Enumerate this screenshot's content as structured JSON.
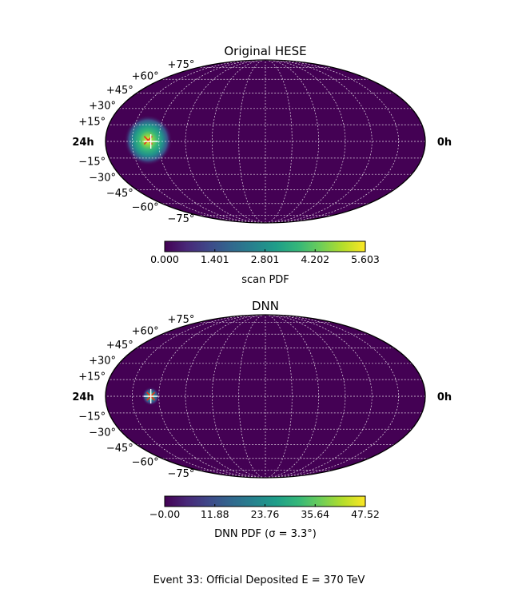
{
  "figure": {
    "footer": "Event 33:  Official Deposited  E = 370 TeV"
  },
  "chart_data": [
    {
      "type": "heatmap",
      "projection": "mollweide",
      "title": "Original HESE",
      "x_edge_labels": {
        "left": "24h",
        "right": "0h"
      },
      "lat_labels": [
        "+75°",
        "+60°",
        "+45°",
        "+30°",
        "+15°",
        "−15°",
        "−30°",
        "−45°",
        "−60°",
        "−75°"
      ],
      "lat_values": [
        75,
        60,
        45,
        30,
        15,
        -15,
        -30,
        -45,
        -60,
        -75
      ],
      "colormap": "viridis",
      "colorbar": {
        "min": 0.0,
        "max": 5.603,
        "ticks": [
          "0.000",
          "1.401",
          "2.801",
          "4.202",
          "5.603"
        ],
        "label": "scan PDF"
      },
      "hotspot": {
        "ra_hours": 20.8,
        "dec_deg": 1,
        "peak": 5.603,
        "sigma_deg": 7
      },
      "markers": [
        {
          "kind": "best-fit",
          "color": "#e8301e",
          "ra_hours": 20.8,
          "dec_deg": 1
        },
        {
          "kind": "truth",
          "color": "#ffffff",
          "ra_hours": 20.6,
          "dec_deg": 0
        }
      ],
      "grid": true
    },
    {
      "type": "heatmap",
      "projection": "mollweide",
      "title": "DNN",
      "x_edge_labels": {
        "left": "24h",
        "right": "0h"
      },
      "lat_labels": [
        "+75°",
        "+60°",
        "+45°",
        "+30°",
        "+15°",
        "−15°",
        "−30°",
        "−45°",
        "−60°",
        "−75°"
      ],
      "lat_values": [
        75,
        60,
        45,
        30,
        15,
        -15,
        -30,
        -45,
        -60,
        -75
      ],
      "colormap": "viridis",
      "colorbar": {
        "min": 0.0,
        "max": 47.52,
        "ticks": [
          "−0.00",
          "11.88",
          "23.76",
          "35.64",
          "47.52"
        ],
        "label": "DNN PDF (σ = 3.3°)"
      },
      "hotspot": {
        "ra_hours": 20.6,
        "dec_deg": 0,
        "peak": 47.52,
        "sigma_deg": 3.3
      },
      "markers": [
        {
          "kind": "best-fit",
          "color": "#e8301e",
          "ra_hours": 20.6,
          "dec_deg": 0
        },
        {
          "kind": "truth",
          "color": "#ffffff",
          "ra_hours": 20.6,
          "dec_deg": 0
        }
      ],
      "grid": true
    }
  ]
}
